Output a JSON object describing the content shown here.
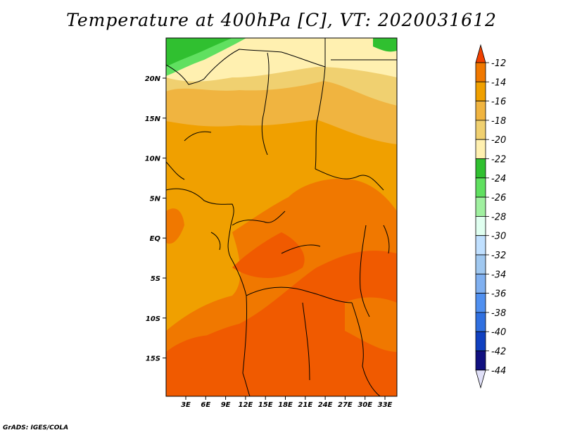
{
  "title": "Temperature at 400hPa [C], VT: 2020031612",
  "footer": "GrADS: IGES/COLA",
  "lat_labels": [
    "20N",
    "15N",
    "10N",
    "5N",
    "EQ",
    "5S",
    "10S",
    "15S"
  ],
  "lon_labels": [
    "3E",
    "6E",
    "9E",
    "12E",
    "15E",
    "18E",
    "21E",
    "24E",
    "27E",
    "30E",
    "33E"
  ],
  "colorbar": {
    "labels": [
      "-12",
      "-14",
      "-16",
      "-18",
      "-20",
      "-22",
      "-24",
      "-26",
      "-28",
      "-30",
      "-32",
      "-34",
      "-36",
      "-38",
      "-40",
      "-42",
      "-44"
    ],
    "colors": [
      "#f05a00",
      "#f07800",
      "#f0a000",
      "#f0b440",
      "#f0d070",
      "#fff0b0",
      "#30c030",
      "#60e060",
      "#a0f0a0",
      "#e0fff0",
      "#c0e0ff",
      "#a0c8f0",
      "#80b0f0",
      "#5090f0",
      "#3070e0",
      "#1040c0",
      "#101080"
    ],
    "top_arrow_color": "#f04000",
    "bottom_arrow_color": "#e0e0f8"
  },
  "chart_data": {
    "type": "heatmap",
    "title": "Temperature at 400hPa [C], VT: 2020031612",
    "variable": "Temperature at 400hPa",
    "units": "C",
    "valid_time": "2020031612",
    "lon_range": [
      0,
      34.5
    ],
    "lat_range": [
      -20,
      24.5
    ],
    "levels": [
      -44,
      -42,
      -40,
      -38,
      -36,
      -34,
      -32,
      -30,
      -28,
      -26,
      -24,
      -22,
      -20,
      -18,
      -16,
      -14,
      -12
    ]
  }
}
